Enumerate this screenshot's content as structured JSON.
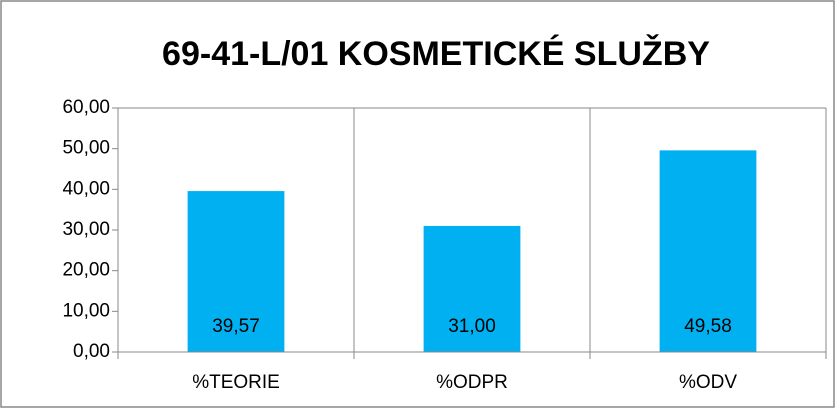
{
  "chart_data": {
    "type": "bar",
    "title": "69-41-L/01 KOSMETICKÉ SLUŽBY",
    "categories": [
      "%TEORIE",
      "%ODPR",
      "%ODV"
    ],
    "values": [
      39.57,
      31.0,
      49.58
    ],
    "value_labels": [
      "39,57",
      "31,00",
      "49,58"
    ],
    "color": "#00b0f0",
    "ylim": [
      0,
      60
    ],
    "yticks": [
      {
        "value": 0,
        "label": "0,00"
      },
      {
        "value": 10,
        "label": "10,00"
      },
      {
        "value": 20,
        "label": "20,00"
      },
      {
        "value": 30,
        "label": "30,00"
      },
      {
        "value": 40,
        "label": "40,00"
      },
      {
        "value": 50,
        "label": "50,00"
      },
      {
        "value": 60,
        "label": "60,00"
      }
    ]
  }
}
